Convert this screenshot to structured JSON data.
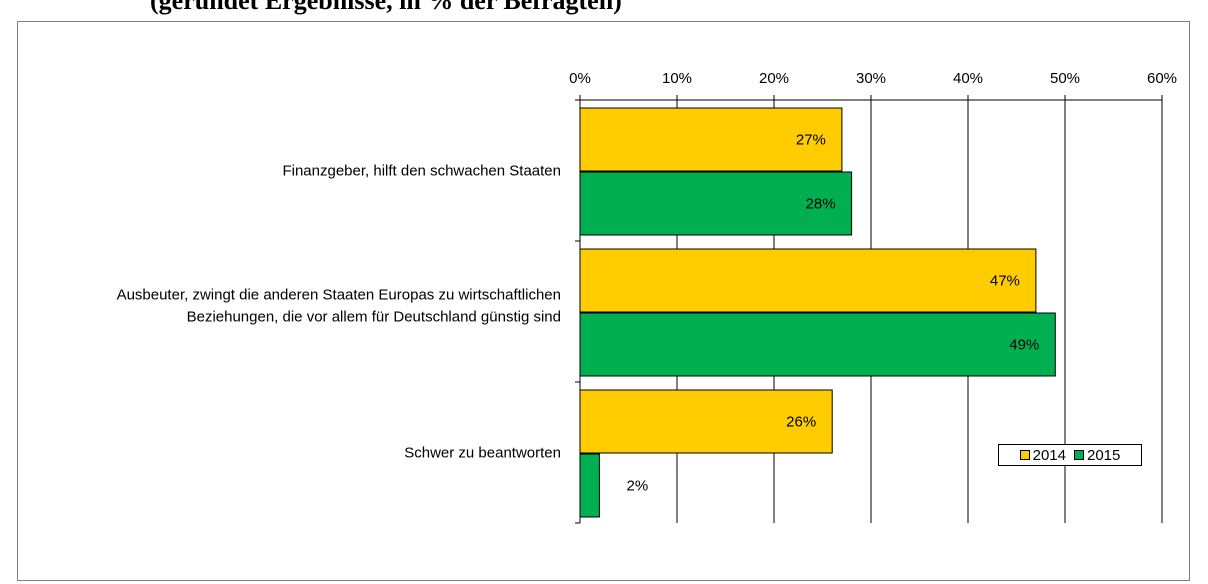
{
  "title": "(gerundet Ergebnisse, in % der Befragten)",
  "colors": {
    "2014": "#FFCC00",
    "2015": "#00B050",
    "grid": "#000000"
  },
  "chart_data": {
    "type": "bar",
    "orientation": "horizontal",
    "categories": [
      [
        "Finanzgeber, hilft den schwachen Staaten"
      ],
      [
        "Ausbeuter, zwingt die anderen Staaten Europas zu wirtschaftlichen",
        "Beziehungen, die vor allem für Deutschland günstig sind"
      ],
      [
        "Schwer zu beantworten"
      ]
    ],
    "series": [
      {
        "name": "2014",
        "values": [
          27,
          47,
          26
        ],
        "labels": [
          "27%",
          "47%",
          "26%"
        ]
      },
      {
        "name": "2015",
        "values": [
          28,
          49,
          2
        ],
        "labels": [
          "28%",
          "49%",
          "2%"
        ]
      }
    ],
    "xlim": [
      0,
      60
    ],
    "xticks": [
      0,
      10,
      20,
      30,
      40,
      50,
      60
    ],
    "xtick_labels": [
      "0%",
      "10%",
      "20%",
      "30%",
      "40%",
      "50%",
      "60%"
    ],
    "xaxis_position": "top",
    "grid": true,
    "legend": {
      "position": "bottom-right",
      "entries": [
        "2014",
        "2015"
      ]
    }
  }
}
